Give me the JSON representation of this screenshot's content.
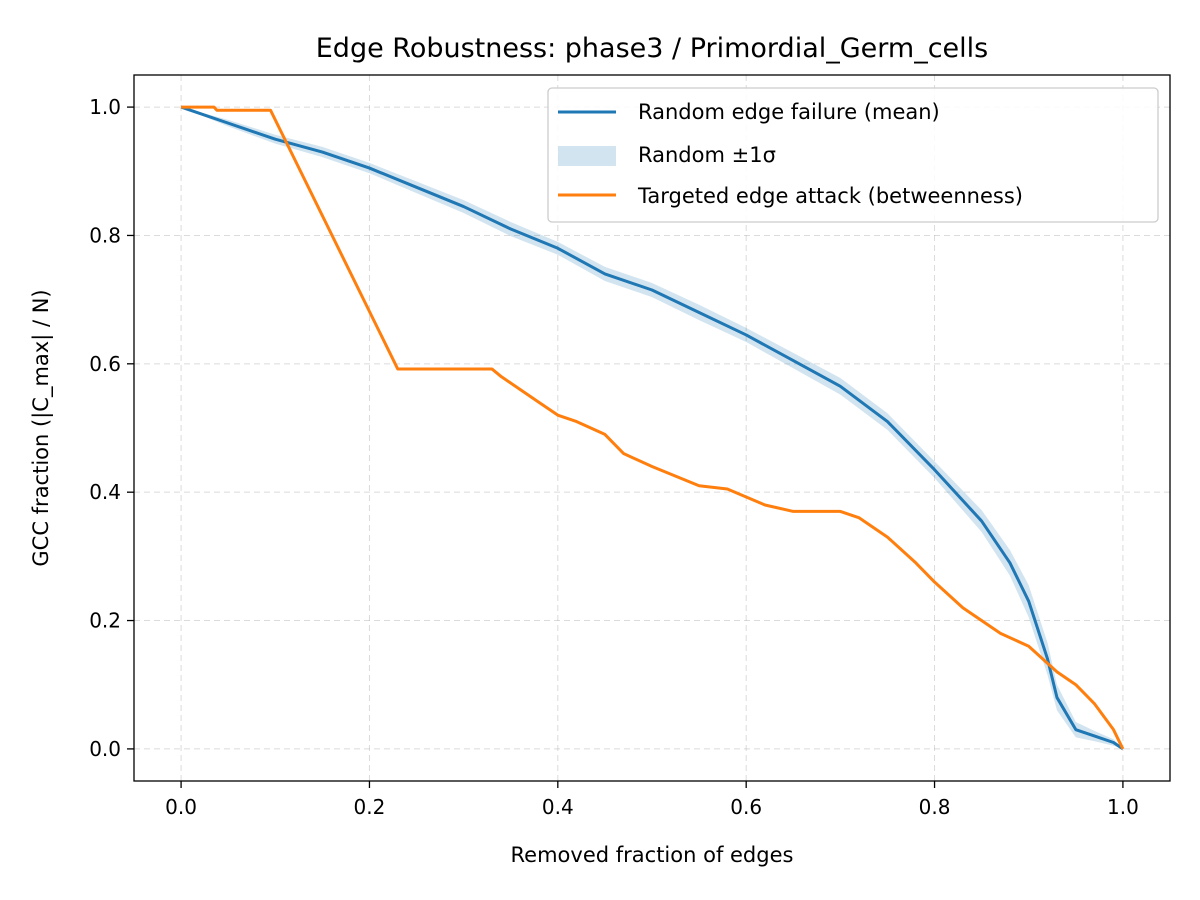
{
  "chart_data": {
    "type": "line",
    "title": "Edge Robustness: phase3 / Primordial_Germ_cells",
    "xlabel": "Removed fraction of edges",
    "ylabel": "GCC fraction (|C_max| / N)",
    "xlim": [
      -0.05,
      1.05
    ],
    "ylim": [
      -0.05,
      1.05
    ],
    "xticks": [
      0.0,
      0.2,
      0.4,
      0.6,
      0.8,
      1.0
    ],
    "yticks": [
      0.0,
      0.2,
      0.4,
      0.6,
      0.8,
      1.0
    ],
    "xtick_labels": [
      "0.0",
      "0.2",
      "0.4",
      "0.6",
      "0.8",
      "1.0"
    ],
    "ytick_labels": [
      "0.0",
      "0.2",
      "0.4",
      "0.6",
      "0.8",
      "1.0"
    ],
    "grid": true,
    "legend_position": "top-right",
    "series": [
      {
        "name": "Random edge failure (mean)",
        "kind": "line",
        "color": "#1f77b4",
        "x": [
          0.0,
          0.05,
          0.1,
          0.15,
          0.2,
          0.25,
          0.3,
          0.35,
          0.4,
          0.45,
          0.5,
          0.55,
          0.6,
          0.65,
          0.7,
          0.75,
          0.8,
          0.85,
          0.88,
          0.9,
          0.92,
          0.93,
          0.95,
          0.97,
          0.99,
          1.0
        ],
        "y": [
          1.0,
          0.975,
          0.95,
          0.93,
          0.905,
          0.875,
          0.845,
          0.81,
          0.78,
          0.74,
          0.715,
          0.68,
          0.645,
          0.605,
          0.565,
          0.51,
          0.435,
          0.355,
          0.29,
          0.23,
          0.14,
          0.08,
          0.03,
          0.02,
          0.01,
          0.0
        ]
      },
      {
        "name": "Random ±1σ",
        "kind": "band",
        "color": "#1f77b4",
        "opacity": 0.2,
        "x": [
          0.0,
          0.05,
          0.1,
          0.15,
          0.2,
          0.25,
          0.3,
          0.35,
          0.4,
          0.45,
          0.5,
          0.55,
          0.6,
          0.65,
          0.7,
          0.75,
          0.8,
          0.85,
          0.88,
          0.9,
          0.92,
          0.93,
          0.95,
          0.97,
          0.99,
          1.0
        ],
        "lower": [
          1.0,
          0.97,
          0.943,
          0.922,
          0.897,
          0.866,
          0.835,
          0.799,
          0.77,
          0.729,
          0.704,
          0.668,
          0.634,
          0.593,
          0.552,
          0.497,
          0.422,
          0.338,
          0.27,
          0.205,
          0.115,
          0.06,
          0.018,
          0.012,
          0.005,
          0.0
        ],
        "upper": [
          1.0,
          0.98,
          0.957,
          0.938,
          0.913,
          0.884,
          0.855,
          0.821,
          0.79,
          0.751,
          0.726,
          0.692,
          0.656,
          0.617,
          0.578,
          0.523,
          0.448,
          0.372,
          0.31,
          0.255,
          0.165,
          0.1,
          0.042,
          0.028,
          0.015,
          0.0
        ]
      },
      {
        "name": "Targeted edge attack (betweenness)",
        "kind": "line",
        "color": "#ff7f0e",
        "x": [
          0.0,
          0.035,
          0.038,
          0.095,
          0.23,
          0.33,
          0.34,
          0.36,
          0.38,
          0.4,
          0.42,
          0.45,
          0.47,
          0.5,
          0.55,
          0.58,
          0.62,
          0.65,
          0.7,
          0.72,
          0.75,
          0.78,
          0.8,
          0.83,
          0.87,
          0.9,
          0.93,
          0.95,
          0.97,
          0.99,
          1.0
        ],
        "y": [
          1.0,
          1.0,
          0.995,
          0.995,
          0.592,
          0.592,
          0.58,
          0.56,
          0.54,
          0.52,
          0.51,
          0.49,
          0.46,
          0.44,
          0.41,
          0.405,
          0.38,
          0.37,
          0.37,
          0.36,
          0.33,
          0.29,
          0.26,
          0.22,
          0.18,
          0.16,
          0.12,
          0.1,
          0.07,
          0.03,
          0.0
        ]
      }
    ]
  }
}
